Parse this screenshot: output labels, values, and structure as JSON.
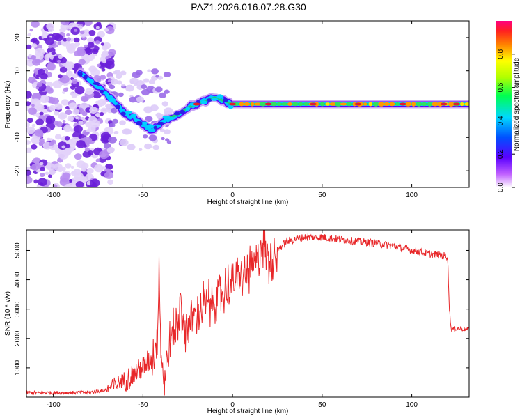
{
  "figure_title": "PAZ1.2026.016.07.28.G30",
  "colors": {
    "snr_line": "#e8282a",
    "scatter": "#6a1fd8",
    "main_track": "#1fd07a",
    "peak": "#e0202a"
  },
  "chart_data": [
    {
      "type": "heatmap",
      "title": "PAZ1.2026.016.07.28.G30",
      "xlabel": "Height of straight line (km)",
      "ylabel": "Frequency (Hz)",
      "xlim": [
        -115,
        132
      ],
      "ylim": [
        -25,
        25
      ],
      "xticks": [
        -100,
        -50,
        0,
        50,
        100
      ],
      "yticks": [
        -20,
        -10,
        0,
        10,
        20
      ],
      "colorbar": {
        "label": "Normalized spectral amplitude",
        "range": [
          0.0,
          1.0
        ],
        "ticks": [
          "0.0",
          "0.2",
          "0.4",
          "0.6",
          "0.8"
        ],
        "tick_values": [
          0.0,
          0.2,
          0.4,
          0.6,
          0.8
        ]
      },
      "ridge": {
        "x": [
          -85,
          -80,
          -75,
          -70,
          -65,
          -60,
          -55,
          -50,
          -45,
          -40,
          -35,
          -30,
          -25,
          -20,
          -15,
          -10,
          -5,
          0,
          10,
          25,
          50,
          75,
          100,
          125
        ],
        "freq": [
          9,
          7,
          5,
          3,
          0,
          -3,
          -4,
          -6,
          -8,
          -6,
          -4,
          -3,
          -1,
          0,
          1,
          2,
          1,
          0,
          0,
          0,
          0,
          0,
          0,
          0
        ]
      }
    },
    {
      "type": "line",
      "title": "",
      "xlabel": "Height of straight line (km)",
      "ylabel": "SNR (10 * v/v)",
      "xlim": [
        -115,
        132
      ],
      "ylim": [
        0,
        5700
      ],
      "xticks": [
        -100,
        -50,
        0,
        50,
        100
      ],
      "yticks": [
        1000,
        2000,
        3000,
        4000,
        5000
      ],
      "x": [
        -115,
        -100,
        -80,
        -70,
        -60,
        -50,
        -45,
        -42,
        -41,
        -40,
        -38,
        -35,
        -30,
        -29,
        -28,
        -20,
        -10,
        0,
        10,
        15,
        16,
        20,
        25,
        30,
        40,
        50,
        60,
        70,
        80,
        90,
        100,
        110,
        120,
        121,
        122,
        125,
        132
      ],
      "values": [
        150,
        150,
        160,
        250,
        600,
        1000,
        1300,
        2000,
        4600,
        1600,
        500,
        1800,
        2600,
        4100,
        2200,
        2900,
        3300,
        3900,
        4300,
        4700,
        5500,
        4700,
        5000,
        5300,
        5450,
        5450,
        5380,
        5300,
        5250,
        5150,
        5000,
        4880,
        4800,
        3000,
        2300,
        2350,
        2300
      ]
    }
  ]
}
